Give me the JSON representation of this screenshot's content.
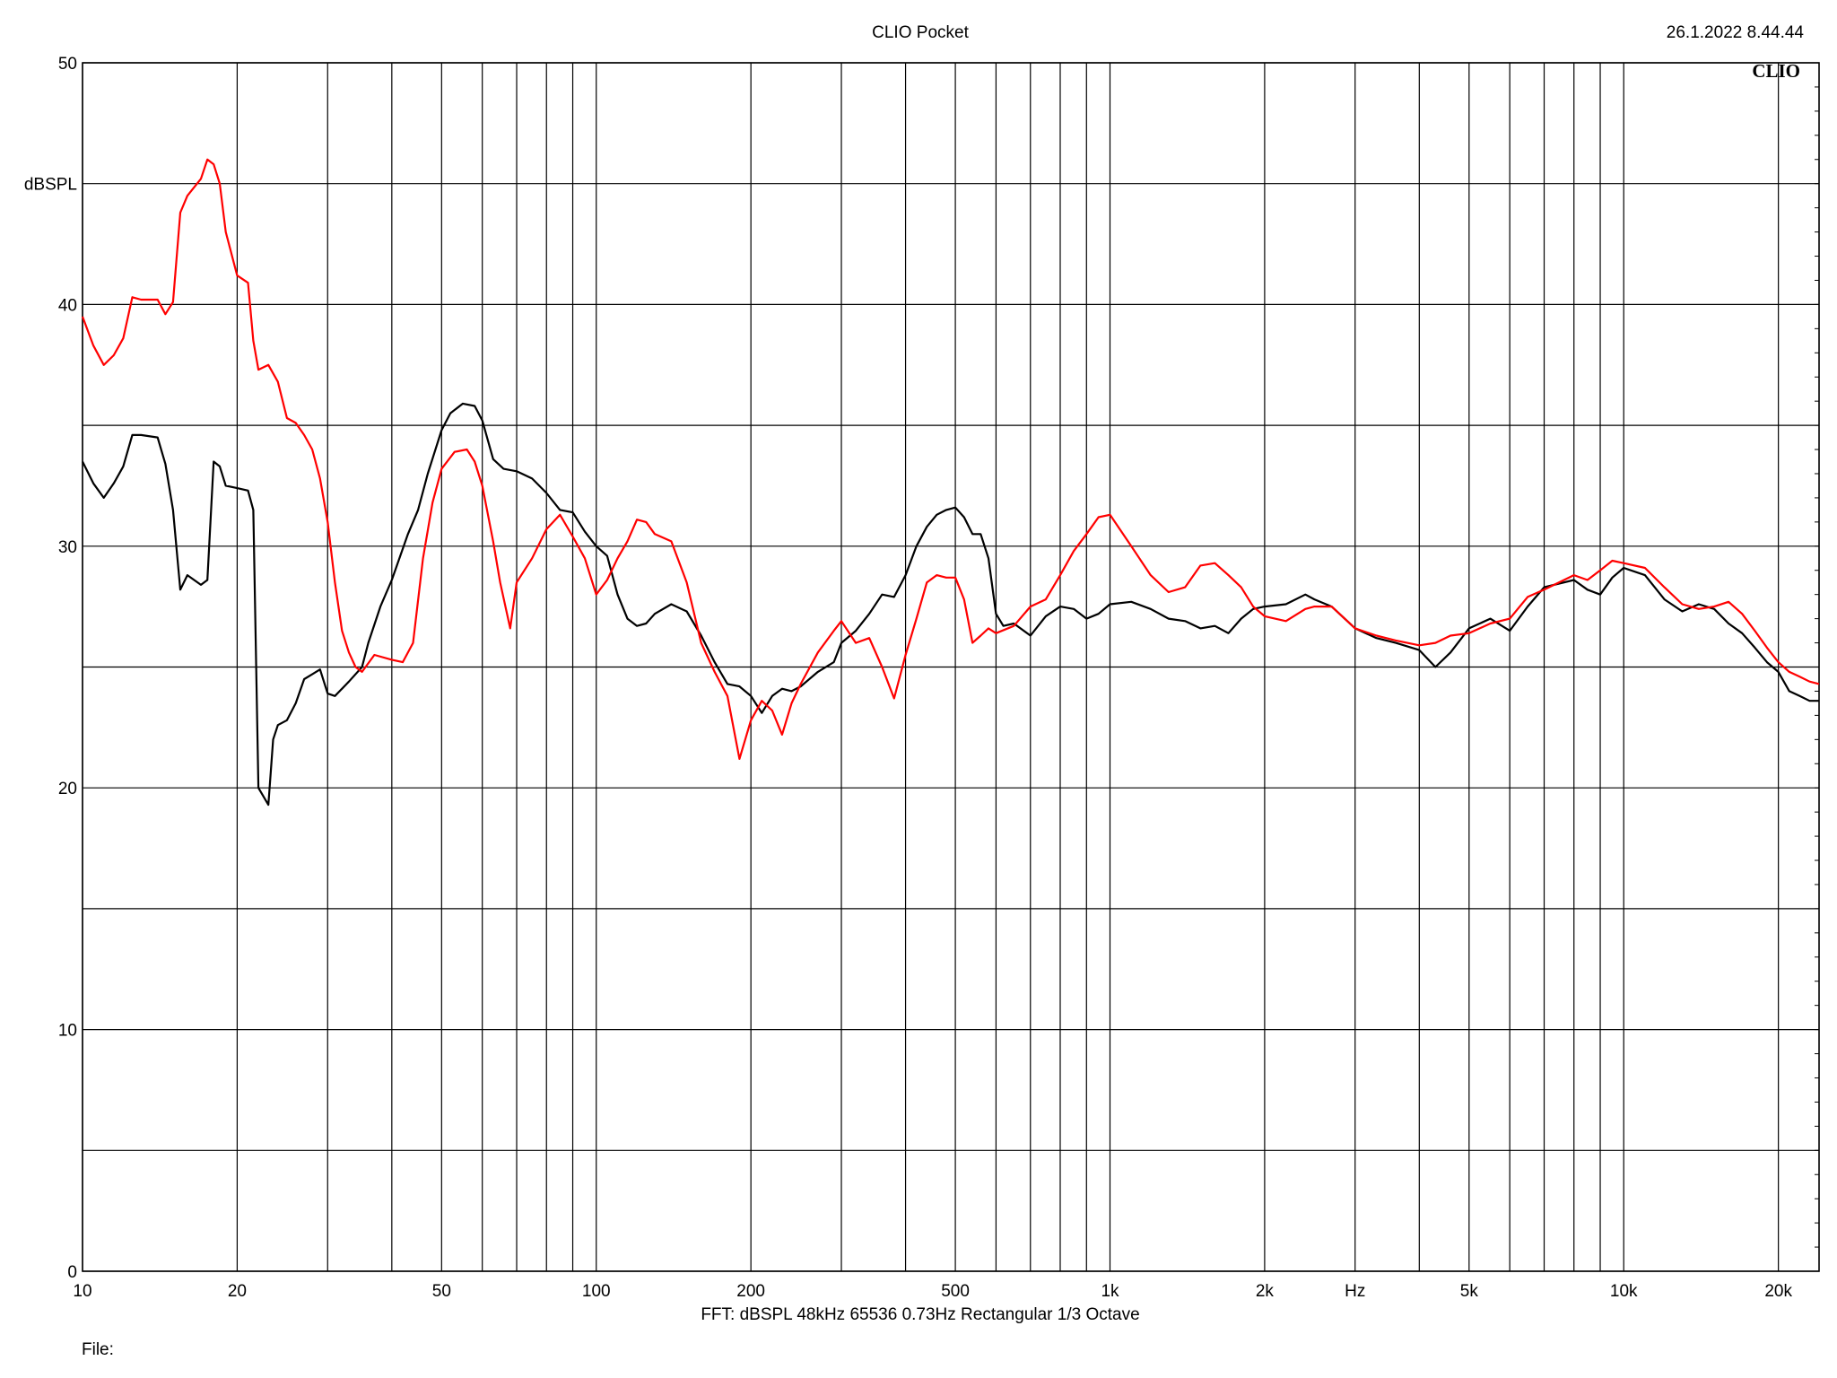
{
  "header": {
    "title": "CLIO Pocket",
    "timestamp": "26.1.2022 8.44.44",
    "logo": "CLIO"
  },
  "footer": {
    "settings": "FFT:  dBSPL  48kHz   65536  0.73Hz  Rectangular  1/3 Octave",
    "file_label": "File:"
  },
  "colors": {
    "series_black": "#000000",
    "series_red": "#ff0000",
    "grid": "#000000"
  },
  "chart_data": {
    "type": "line",
    "title": "CLIO Pocket",
    "xlabel": "Hz",
    "ylabel": "dBSPL",
    "x_scale": "log",
    "xlim": [
      10,
      24000
    ],
    "ylim": [
      0,
      50
    ],
    "grid": true,
    "x_ticks": [
      {
        "value": 10,
        "label": "10"
      },
      {
        "value": 20,
        "label": "20"
      },
      {
        "value": 50,
        "label": "50"
      },
      {
        "value": 100,
        "label": "100"
      },
      {
        "value": 200,
        "label": "200"
      },
      {
        "value": 500,
        "label": "500"
      },
      {
        "value": 1000,
        "label": "1k"
      },
      {
        "value": 2000,
        "label": "2k"
      },
      {
        "value": 3000,
        "label": "Hz"
      },
      {
        "value": 5000,
        "label": "5k"
      },
      {
        "value": 10000,
        "label": "10k"
      },
      {
        "value": 20000,
        "label": "20k"
      }
    ],
    "y_ticks": [
      {
        "value": 0,
        "label": "0"
      },
      {
        "value": 10,
        "label": "10"
      },
      {
        "value": 20,
        "label": "20"
      },
      {
        "value": 30,
        "label": "30"
      },
      {
        "value": 40,
        "label": "40"
      },
      {
        "value": 45,
        "label": "dBSPL"
      },
      {
        "value": 50,
        "label": "50"
      }
    ],
    "series": [
      {
        "color": "#000000",
        "points": [
          [
            10,
            33.5
          ],
          [
            10.5,
            32.6
          ],
          [
            11,
            32
          ],
          [
            11.5,
            32.6
          ],
          [
            12,
            33.3
          ],
          [
            12.5,
            34.6
          ],
          [
            13,
            34.6
          ],
          [
            14,
            34.5
          ],
          [
            14.5,
            33.4
          ],
          [
            15,
            31.5
          ],
          [
            15.5,
            28.2
          ],
          [
            16,
            28.8
          ],
          [
            17,
            28.4
          ],
          [
            17.5,
            28.6
          ],
          [
            18,
            33.5
          ],
          [
            18.5,
            33.3
          ],
          [
            19,
            32.5
          ],
          [
            20,
            32.4
          ],
          [
            21,
            32.3
          ],
          [
            21.5,
            31.5
          ],
          [
            22,
            20
          ],
          [
            23,
            19.3
          ],
          [
            23.5,
            22
          ],
          [
            24,
            22.6
          ],
          [
            25,
            22.8
          ],
          [
            26,
            23.5
          ],
          [
            27,
            24.5
          ],
          [
            28,
            24.7
          ],
          [
            29,
            24.9
          ],
          [
            30,
            23.9
          ],
          [
            31,
            23.8
          ],
          [
            32,
            24.1
          ],
          [
            33,
            24.4
          ],
          [
            35,
            25
          ],
          [
            36,
            26
          ],
          [
            38,
            27.5
          ],
          [
            40,
            28.6
          ],
          [
            43,
            30.5
          ],
          [
            45,
            31.5
          ],
          [
            47,
            33
          ],
          [
            50,
            34.8
          ],
          [
            52,
            35.5
          ],
          [
            55,
            35.9
          ],
          [
            58,
            35.8
          ],
          [
            60,
            35.2
          ],
          [
            63,
            33.6
          ],
          [
            66,
            33.2
          ],
          [
            70,
            33.1
          ],
          [
            75,
            32.8
          ],
          [
            80,
            32.2
          ],
          [
            85,
            31.5
          ],
          [
            90,
            31.4
          ],
          [
            95,
            30.6
          ],
          [
            100,
            30
          ],
          [
            105,
            29.6
          ],
          [
            110,
            28
          ],
          [
            115,
            27
          ],
          [
            120,
            26.7
          ],
          [
            125,
            26.8
          ],
          [
            130,
            27.2
          ],
          [
            140,
            27.6
          ],
          [
            150,
            27.3
          ],
          [
            160,
            26.3
          ],
          [
            170,
            25.2
          ],
          [
            180,
            24.3
          ],
          [
            190,
            24.2
          ],
          [
            200,
            23.8
          ],
          [
            210,
            23.1
          ],
          [
            220,
            23.8
          ],
          [
            230,
            24.1
          ],
          [
            240,
            24
          ],
          [
            250,
            24.2
          ],
          [
            270,
            24.8
          ],
          [
            290,
            25.2
          ],
          [
            300,
            26
          ],
          [
            320,
            26.5
          ],
          [
            340,
            27.2
          ],
          [
            360,
            28
          ],
          [
            380,
            27.9
          ],
          [
            400,
            28.8
          ],
          [
            420,
            30
          ],
          [
            440,
            30.8
          ],
          [
            460,
            31.3
          ],
          [
            480,
            31.5
          ],
          [
            500,
            31.6
          ],
          [
            520,
            31.2
          ],
          [
            540,
            30.5
          ],
          [
            560,
            30.5
          ],
          [
            580,
            29.5
          ],
          [
            600,
            27.2
          ],
          [
            620,
            26.7
          ],
          [
            650,
            26.8
          ],
          [
            700,
            26.3
          ],
          [
            750,
            27.1
          ],
          [
            800,
            27.5
          ],
          [
            850,
            27.4
          ],
          [
            900,
            27
          ],
          [
            950,
            27.2
          ],
          [
            1000,
            27.6
          ],
          [
            1100,
            27.7
          ],
          [
            1200,
            27.4
          ],
          [
            1300,
            27
          ],
          [
            1400,
            26.9
          ],
          [
            1500,
            26.6
          ],
          [
            1600,
            26.7
          ],
          [
            1700,
            26.4
          ],
          [
            1800,
            27
          ],
          [
            1900,
            27.4
          ],
          [
            2000,
            27.5
          ],
          [
            2200,
            27.6
          ],
          [
            2400,
            28
          ],
          [
            2500,
            27.8
          ],
          [
            2700,
            27.5
          ],
          [
            3000,
            26.6
          ],
          [
            3300,
            26.2
          ],
          [
            3600,
            26
          ],
          [
            4000,
            25.7
          ],
          [
            4300,
            25
          ],
          [
            4600,
            25.6
          ],
          [
            5000,
            26.6
          ],
          [
            5500,
            27
          ],
          [
            6000,
            26.5
          ],
          [
            6500,
            27.5
          ],
          [
            7000,
            28.3
          ],
          [
            8000,
            28.6
          ],
          [
            8500,
            28.2
          ],
          [
            9000,
            28
          ],
          [
            9500,
            28.7
          ],
          [
            10000,
            29.1
          ],
          [
            11000,
            28.8
          ],
          [
            12000,
            27.8
          ],
          [
            13000,
            27.3
          ],
          [
            14000,
            27.6
          ],
          [
            15000,
            27.4
          ],
          [
            16000,
            26.8
          ],
          [
            17000,
            26.4
          ],
          [
            18000,
            25.8
          ],
          [
            19000,
            25.2
          ],
          [
            20000,
            24.8
          ],
          [
            21000,
            24
          ],
          [
            22000,
            23.8
          ],
          [
            23000,
            23.6
          ],
          [
            24000,
            23.6
          ]
        ]
      },
      {
        "color": "#ff0000",
        "points": [
          [
            10,
            39.5
          ],
          [
            10.5,
            38.3
          ],
          [
            11,
            37.5
          ],
          [
            11.5,
            37.9
          ],
          [
            12,
            38.6
          ],
          [
            12.5,
            40.3
          ],
          [
            13,
            40.2
          ],
          [
            14,
            40.2
          ],
          [
            14.5,
            39.6
          ],
          [
            15,
            40.1
          ],
          [
            15.5,
            43.8
          ],
          [
            16,
            44.5
          ],
          [
            17,
            45.2
          ],
          [
            17.5,
            46
          ],
          [
            18,
            45.8
          ],
          [
            18.5,
            45
          ],
          [
            19,
            43
          ],
          [
            20,
            41.2
          ],
          [
            21,
            40.9
          ],
          [
            21.5,
            38.5
          ],
          [
            22,
            37.3
          ],
          [
            23,
            37.5
          ],
          [
            24,
            36.8
          ],
          [
            25,
            35.3
          ],
          [
            26,
            35.1
          ],
          [
            27,
            34.6
          ],
          [
            28,
            34
          ],
          [
            29,
            32.8
          ],
          [
            30,
            31
          ],
          [
            31,
            28.5
          ],
          [
            32,
            26.5
          ],
          [
            33,
            25.6
          ],
          [
            34,
            25
          ],
          [
            35,
            24.8
          ],
          [
            37,
            25.5
          ],
          [
            40,
            25.3
          ],
          [
            42,
            25.2
          ],
          [
            44,
            26
          ],
          [
            46,
            29.5
          ],
          [
            48,
            31.8
          ],
          [
            50,
            33.2
          ],
          [
            53,
            33.9
          ],
          [
            56,
            34
          ],
          [
            58,
            33.5
          ],
          [
            60,
            32.5
          ],
          [
            63,
            30.2
          ],
          [
            65,
            28.5
          ],
          [
            68,
            26.6
          ],
          [
            70,
            28.5
          ],
          [
            75,
            29.5
          ],
          [
            80,
            30.7
          ],
          [
            85,
            31.3
          ],
          [
            90,
            30.4
          ],
          [
            95,
            29.5
          ],
          [
            100,
            28
          ],
          [
            105,
            28.6
          ],
          [
            110,
            29.5
          ],
          [
            115,
            30.2
          ],
          [
            120,
            31.1
          ],
          [
            125,
            31
          ],
          [
            130,
            30.5
          ],
          [
            140,
            30.2
          ],
          [
            150,
            28.5
          ],
          [
            160,
            26
          ],
          [
            170,
            24.8
          ],
          [
            180,
            23.8
          ],
          [
            190,
            21.2
          ],
          [
            200,
            22.8
          ],
          [
            210,
            23.6
          ],
          [
            220,
            23.2
          ],
          [
            230,
            22.2
          ],
          [
            240,
            23.5
          ],
          [
            250,
            24.3
          ],
          [
            270,
            25.6
          ],
          [
            290,
            26.5
          ],
          [
            300,
            26.9
          ],
          [
            320,
            26
          ],
          [
            340,
            26.2
          ],
          [
            360,
            25
          ],
          [
            380,
            23.7
          ],
          [
            400,
            25.5
          ],
          [
            420,
            27
          ],
          [
            440,
            28.5
          ],
          [
            460,
            28.8
          ],
          [
            480,
            28.7
          ],
          [
            500,
            28.7
          ],
          [
            520,
            27.8
          ],
          [
            540,
            26
          ],
          [
            560,
            26.3
          ],
          [
            580,
            26.6
          ],
          [
            600,
            26.4
          ],
          [
            650,
            26.7
          ],
          [
            700,
            27.5
          ],
          [
            750,
            27.8
          ],
          [
            800,
            28.8
          ],
          [
            850,
            29.8
          ],
          [
            900,
            30.5
          ],
          [
            950,
            31.2
          ],
          [
            1000,
            31.3
          ],
          [
            1100,
            30
          ],
          [
            1200,
            28.8
          ],
          [
            1300,
            28.1
          ],
          [
            1400,
            28.3
          ],
          [
            1500,
            29.2
          ],
          [
            1600,
            29.3
          ],
          [
            1700,
            28.8
          ],
          [
            1800,
            28.3
          ],
          [
            1900,
            27.5
          ],
          [
            2000,
            27.1
          ],
          [
            2200,
            26.9
          ],
          [
            2400,
            27.4
          ],
          [
            2500,
            27.5
          ],
          [
            2700,
            27.5
          ],
          [
            3000,
            26.6
          ],
          [
            3300,
            26.3
          ],
          [
            3600,
            26.1
          ],
          [
            4000,
            25.9
          ],
          [
            4300,
            26
          ],
          [
            4600,
            26.3
          ],
          [
            5000,
            26.4
          ],
          [
            5500,
            26.8
          ],
          [
            6000,
            27
          ],
          [
            6500,
            27.9
          ],
          [
            7000,
            28.2
          ],
          [
            8000,
            28.8
          ],
          [
            8500,
            28.6
          ],
          [
            9000,
            29
          ],
          [
            9500,
            29.4
          ],
          [
            10000,
            29.3
          ],
          [
            11000,
            29.1
          ],
          [
            12000,
            28.3
          ],
          [
            13000,
            27.6
          ],
          [
            14000,
            27.4
          ],
          [
            15000,
            27.5
          ],
          [
            16000,
            27.7
          ],
          [
            17000,
            27.2
          ],
          [
            18000,
            26.5
          ],
          [
            19000,
            25.8
          ],
          [
            20000,
            25.2
          ],
          [
            21000,
            24.8
          ],
          [
            22000,
            24.6
          ],
          [
            23000,
            24.4
          ],
          [
            24000,
            24.3
          ]
        ]
      }
    ]
  }
}
